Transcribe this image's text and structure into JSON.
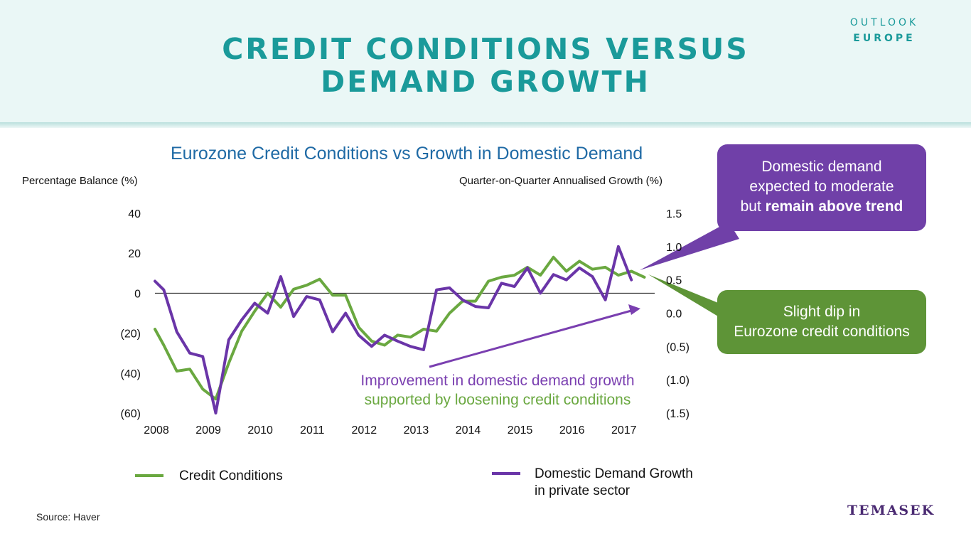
{
  "header": {
    "title_line1": "CREDIT CONDITIONS VERSUS",
    "title_line2": "DEMAND GROWTH",
    "tag_line1": "OUTLOOK",
    "tag_line2": "EUROPE"
  },
  "chart_data": {
    "type": "line",
    "title": "Eurozone Credit Conditions vs Growth in Domestic Demand",
    "y_left_label": "Percentage Balance (%)",
    "y_right_label": "Quarter-on-Quarter Annualised Growth (%)",
    "x_ticks": [
      "2008",
      "2009",
      "2010",
      "2011",
      "2012",
      "2013",
      "2014",
      "2015",
      "2016",
      "2017"
    ],
    "y_left_ticks": [
      "40",
      "20",
      "0",
      "(20)",
      "(40)",
      "(60)"
    ],
    "y_left_tick_values": [
      40,
      20,
      0,
      -20,
      -40,
      -60
    ],
    "y_right_ticks": [
      "1.5",
      "1.0",
      "0.5",
      "0.0",
      "(0.5)",
      "(1.0)",
      "(1.5)"
    ],
    "y_right_tick_values": [
      1.5,
      1.0,
      0.5,
      0.0,
      -0.5,
      -1.0,
      -1.5
    ],
    "y_left_range": [
      -60,
      40
    ],
    "y_right_range": [
      -1.5,
      1.5
    ],
    "x_start_year": 2008,
    "x_end_year": 2017.4,
    "series": [
      {
        "name": "Credit Conditions",
        "axis": "left",
        "color": "#6aa840",
        "x": [
          2008.0,
          2008.17,
          2008.42,
          2008.67,
          2008.92,
          2009.17,
          2009.42,
          2009.67,
          2009.92,
          2010.17,
          2010.42,
          2010.67,
          2010.92,
          2011.17,
          2011.42,
          2011.67,
          2011.92,
          2012.17,
          2012.42,
          2012.67,
          2012.92,
          2013.17,
          2013.42,
          2013.67,
          2013.92,
          2014.17,
          2014.42,
          2014.67,
          2014.92,
          2015.17,
          2015.42,
          2015.67,
          2015.92,
          2016.17,
          2016.42,
          2016.67,
          2016.92,
          2017.17,
          2017.42
        ],
        "y": [
          -18,
          -26,
          -39,
          -38,
          -48,
          -53,
          -35,
          -19,
          -9,
          0,
          -7,
          2,
          4,
          7,
          -1,
          -1,
          -17,
          -24,
          -26,
          -21,
          -22,
          -18,
          -19,
          -10,
          -4,
          -4,
          6,
          8,
          9,
          13,
          9,
          18,
          11,
          16,
          12,
          13,
          9,
          11,
          8
        ]
      },
      {
        "name": "Domestic Demand Growth in private sector",
        "axis": "right",
        "color": "#6a35a8",
        "x": [
          2008.0,
          2008.17,
          2008.42,
          2008.67,
          2008.92,
          2009.17,
          2009.42,
          2009.67,
          2009.92,
          2010.17,
          2010.42,
          2010.67,
          2010.92,
          2011.17,
          2011.42,
          2011.67,
          2011.92,
          2012.17,
          2012.42,
          2012.67,
          2012.92,
          2013.17,
          2013.42,
          2013.67,
          2013.92,
          2014.17,
          2014.42,
          2014.67,
          2014.92,
          2015.17,
          2015.42,
          2015.67,
          2015.92,
          2016.17,
          2016.42,
          2016.67,
          2016.92,
          2017.17
        ],
        "y": [
          0.48,
          0.35,
          -0.28,
          -0.6,
          -0.65,
          -1.5,
          -0.4,
          -0.1,
          0.15,
          0.0,
          0.55,
          -0.05,
          0.25,
          0.2,
          -0.28,
          0.0,
          -0.33,
          -0.5,
          -0.33,
          -0.42,
          -0.5,
          -0.55,
          0.35,
          0.38,
          0.2,
          0.1,
          0.08,
          0.45,
          0.4,
          0.68,
          0.3,
          0.58,
          0.5,
          0.68,
          0.55,
          0.2,
          1.0,
          0.5
        ]
      }
    ],
    "zero_line": true
  },
  "legend": {
    "item1_label": "Credit Conditions",
    "item2_line1": "Domestic Demand Growth",
    "item2_line2": "in private sector",
    "item1_color": "#6aa840",
    "item2_color": "#6a35a8"
  },
  "callouts": {
    "purple_line1": "Domestic demand",
    "purple_line2": "expected to moderate",
    "purple_line3_prefix": "but ",
    "purple_line3_bold": "remain above trend",
    "purple_color": "#7040a8",
    "green_line1": "Slight dip in",
    "green_line2": "Eurozone credit conditions",
    "green_color": "#5e9437"
  },
  "annotation": {
    "line1": "Improvement in domestic demand growth",
    "line2": "supported by loosening credit conditions"
  },
  "footer": {
    "source": "Source: Haver",
    "logo": "TEMASEK"
  }
}
